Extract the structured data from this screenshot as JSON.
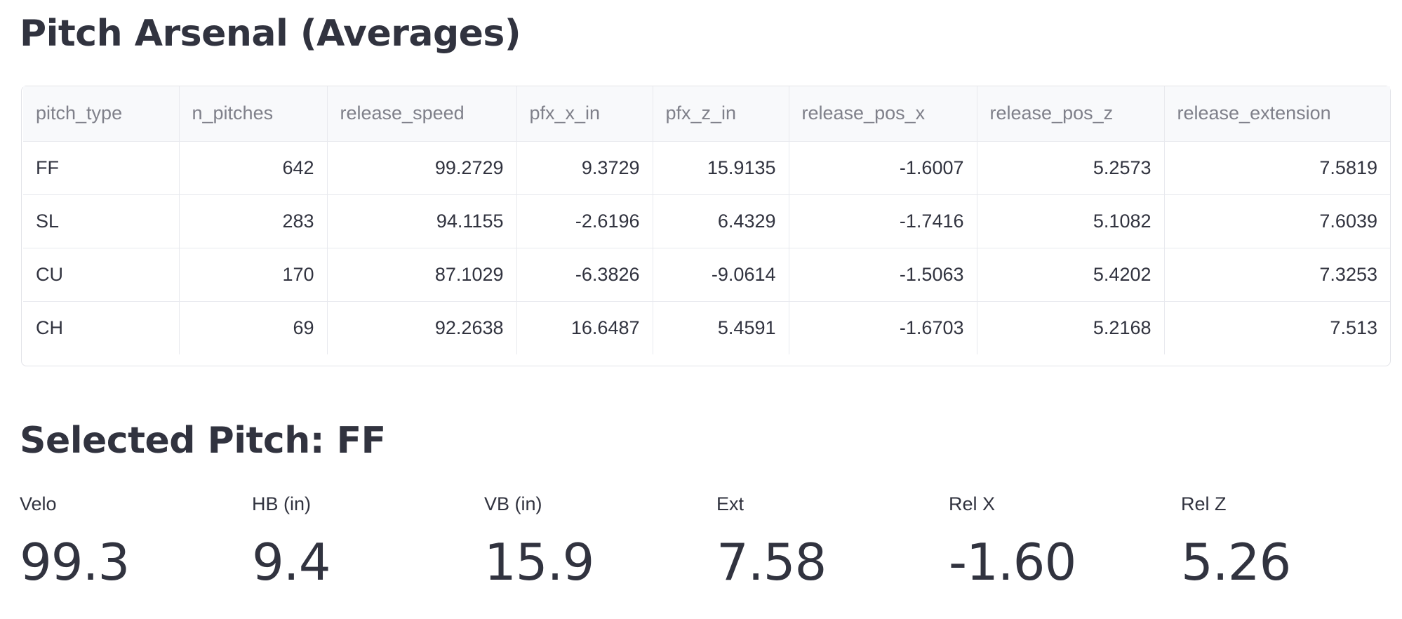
{
  "arsenal": {
    "title": "Pitch Arsenal (Averages)",
    "columns": [
      "pitch_type",
      "n_pitches",
      "release_speed",
      "pfx_x_in",
      "pfx_z_in",
      "release_pos_x",
      "release_pos_z",
      "release_extension"
    ],
    "rows": [
      [
        "FF",
        "642",
        "99.2729",
        "9.3729",
        "15.9135",
        "-1.6007",
        "5.2573",
        "7.5819"
      ],
      [
        "SL",
        "283",
        "94.1155",
        "-2.6196",
        "6.4329",
        "-1.7416",
        "5.1082",
        "7.6039"
      ],
      [
        "CU",
        "170",
        "87.1029",
        "-6.3826",
        "-9.0614",
        "-1.5063",
        "5.4202",
        "7.3253"
      ],
      [
        "CH",
        "69",
        "92.2638",
        "16.6487",
        "5.4591",
        "-1.6703",
        "5.2168",
        "7.513"
      ]
    ]
  },
  "selected": {
    "title": "Selected Pitch: FF",
    "metrics": [
      {
        "label": "Velo",
        "value": "99.3"
      },
      {
        "label": "HB (in)",
        "value": "9.4"
      },
      {
        "label": "VB (in)",
        "value": "15.9"
      },
      {
        "label": "Ext",
        "value": "7.58"
      },
      {
        "label": "Rel X",
        "value": "-1.60"
      },
      {
        "label": "Rel Z",
        "value": "5.26"
      }
    ]
  }
}
